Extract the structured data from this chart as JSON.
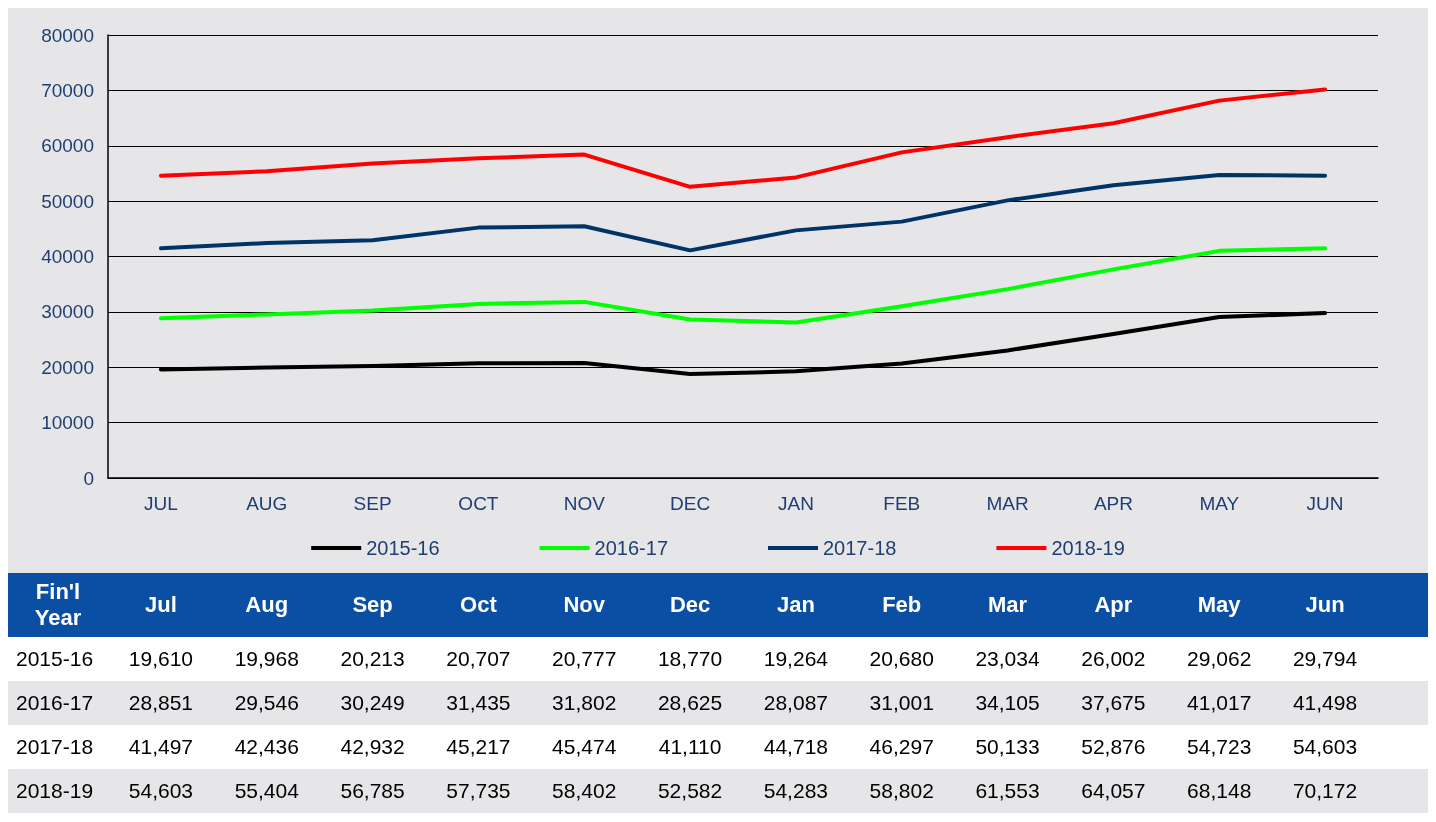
{
  "chart_data": {
    "type": "line",
    "categories": [
      "JUL",
      "AUG",
      "SEP",
      "OCT",
      "NOV",
      "DEC",
      "JAN",
      "FEB",
      "MAR",
      "APR",
      "MAY",
      "JUN"
    ],
    "series": [
      {
        "name": "2015-16",
        "color": "#000000",
        "values": [
          19610,
          19968,
          20213,
          20707,
          20777,
          18770,
          19264,
          20680,
          23034,
          26002,
          29062,
          29794
        ],
        "value_labels": [
          "19,610",
          "19,968",
          "20,213",
          "20,707",
          "20,777",
          "18,770",
          "19,264",
          "20,680",
          "23,034",
          "26,002",
          "29,062",
          "29,794"
        ]
      },
      {
        "name": "2016-17",
        "color": "#00ff00",
        "values": [
          28851,
          29546,
          30249,
          31435,
          31802,
          28625,
          28087,
          31001,
          34105,
          37675,
          41017,
          41498
        ],
        "value_labels": [
          "28,851",
          "29,546",
          "30,249",
          "31,435",
          "31,802",
          "28,625",
          "28,087",
          "31,001",
          "34,105",
          "37,675",
          "41,017",
          "41,498"
        ]
      },
      {
        "name": "2017-18",
        "color": "#003366",
        "values": [
          41497,
          42436,
          42932,
          45217,
          45474,
          41110,
          44718,
          46297,
          50133,
          52876,
          54723,
          54603
        ],
        "value_labels": [
          "41,497",
          "42,436",
          "42,932",
          "45,217",
          "45,474",
          "41,110",
          "44,718",
          "46,297",
          "50,133",
          "52,876",
          "54,723",
          "54,603"
        ]
      },
      {
        "name": "2018-19",
        "color": "#ff0000",
        "values": [
          54603,
          55404,
          56785,
          57735,
          58402,
          52582,
          54283,
          58802,
          61553,
          64057,
          68148,
          70172
        ],
        "value_labels": [
          "54,603",
          "55,404",
          "56,785",
          "57,735",
          "58,402",
          "52,582",
          "54,283",
          "58,802",
          "61,553",
          "64,057",
          "68,148",
          "70,172"
        ]
      }
    ],
    "ylim": [
      0,
      80000
    ],
    "yticks": [
      0,
      10000,
      20000,
      30000,
      40000,
      50000,
      60000,
      70000,
      80000
    ],
    "grid": "y",
    "legend": "bottom",
    "marker": "none",
    "line_style": "solid",
    "annotations": [
      "Fin'l Year",
      "Jul",
      "Aug",
      "Sep",
      "Oct",
      "Nov",
      "Dec",
      "Jan",
      "Feb",
      "Mar",
      "Apr",
      "May",
      "Jun"
    ]
  }
}
